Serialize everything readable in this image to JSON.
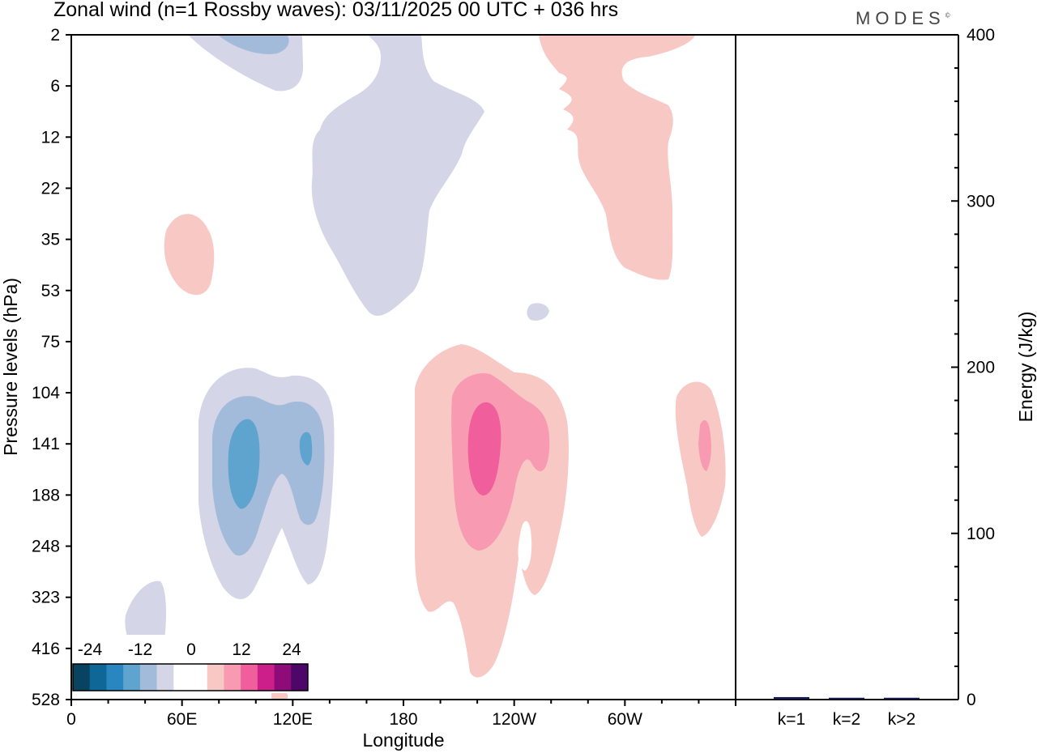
{
  "header": {
    "title": "Zonal wind (n=1 Rossby waves):  03/11/2025  00 UTC  + 036 hrs",
    "brand": "MODES",
    "brand_mark": "©"
  },
  "colors": {
    "neg_levels": [
      "#08445f",
      "#0e6796",
      "#2a86c0",
      "#5fa3cf",
      "#a3bbda",
      "#d4d5e7"
    ],
    "zero": "#ffffff",
    "pos_levels": [
      "#f8c9c4",
      "#f89ab1",
      "#f05f9c",
      "#cc1f8a",
      "#8e0c7a",
      "#4e0668"
    ],
    "axis": "#000000",
    "energy_bar": "#1a1a4a"
  },
  "chart_data": [
    {
      "type": "heatmap",
      "title": "Zonal wind (n=1 Rossby waves):  03/11/2025  00 UTC  + 036 hrs",
      "xlabel": "Longitude",
      "ylabel": "Pressure levels (hPa)",
      "x_ticks": [
        "0",
        "60E",
        "120E",
        "180",
        "120W",
        "60W"
      ],
      "y_ticks": [
        "2",
        "6",
        "12",
        "22",
        "35",
        "53",
        "75",
        "104",
        "141",
        "188",
        "248",
        "323",
        "416",
        "528"
      ],
      "colorbar": {
        "labels": [
          "-24",
          "-12",
          "0",
          "12",
          "24"
        ],
        "levels": [
          -30,
          -25,
          -20,
          -15,
          -10,
          -5,
          0,
          5,
          10,
          15,
          20,
          25,
          30
        ]
      },
      "features": [
        {
          "sign": "negative",
          "max_level": 2,
          "lon": 95,
          "hPa": 141
        },
        {
          "sign": "negative",
          "max_level": 2,
          "lon": 126,
          "hPa": 141
        },
        {
          "sign": "negative",
          "max_level": 0,
          "lon": 170,
          "hPa": 25
        },
        {
          "sign": "negative",
          "max_level": 1,
          "lon": 95,
          "hPa": 2
        },
        {
          "sign": "negative",
          "max_level": 0,
          "lon": 40,
          "hPa": 416
        },
        {
          "sign": "positive",
          "max_level": 2,
          "lon": 225,
          "hPa": 141
        },
        {
          "sign": "positive",
          "max_level": 1,
          "lon": 342,
          "hPa": 141
        },
        {
          "sign": "positive",
          "max_level": 0,
          "lon": 280,
          "hPa": 12
        },
        {
          "sign": "positive",
          "max_level": 0,
          "lon": 62,
          "hPa": 35
        }
      ]
    },
    {
      "type": "bar",
      "ylabel": "Energy (J/kg)",
      "categories": [
        "k=1",
        "k=2",
        "k>2"
      ],
      "values": [
        1,
        0.6,
        0.6
      ],
      "ylim": [
        0,
        400
      ],
      "y_ticks": [
        "0",
        "100",
        "200",
        "300",
        "400"
      ]
    }
  ]
}
